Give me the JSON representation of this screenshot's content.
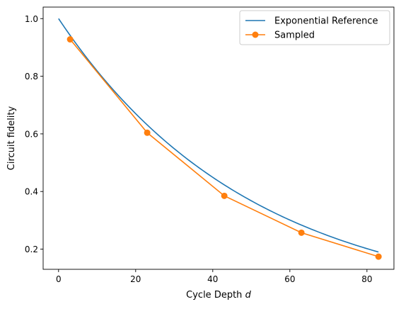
{
  "chart_data": {
    "type": "line",
    "xlabel": "Cycle Depth",
    "xlabel_var": "d",
    "ylabel": "Circuit fidelity",
    "xlim": [
      -4,
      87
    ],
    "ylim": [
      0.13,
      1.04
    ],
    "xticks": [
      0,
      20,
      40,
      60,
      80
    ],
    "yticks": [
      0.2,
      0.4,
      0.6,
      0.8,
      1.0
    ],
    "xtick_labels": [
      "0",
      "20",
      "40",
      "60",
      "80"
    ],
    "ytick_labels": [
      "0.2",
      "0.4",
      "0.6",
      "0.8",
      "1.0"
    ],
    "grid": false,
    "legend_position": "top-right",
    "series": [
      {
        "name": "Exponential Reference",
        "kind": "line",
        "color": "#1f77b4",
        "model": "exponential",
        "x_range": [
          0,
          83
        ],
        "y_at_x_start": 1.0,
        "y_at_x_end": 0.19
      },
      {
        "name": "Sampled",
        "kind": "line-markers",
        "color": "#ff7f0e",
        "x": [
          3,
          23,
          43,
          63,
          83
        ],
        "y": [
          0.928,
          0.604,
          0.385,
          0.257,
          0.174
        ]
      }
    ]
  }
}
